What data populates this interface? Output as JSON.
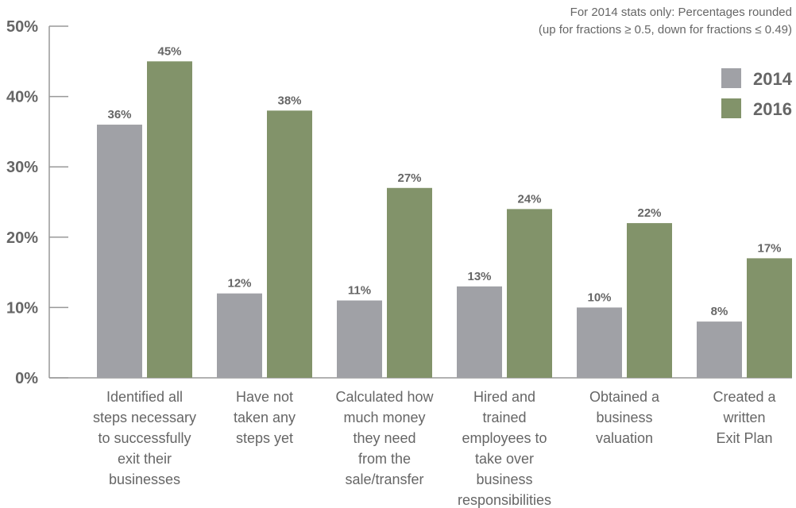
{
  "colors": {
    "series_2014": "#a0a1a6",
    "series_2016": "#82936a",
    "axis": "#999999",
    "text": "#666666"
  },
  "chart_data": {
    "type": "bar",
    "note_lines": [
      "For 2014 stats only: Percentages rounded",
      "(up for fractions ≥ 0.5, down for fractions ≤ 0.49)"
    ],
    "categories": [
      [
        "Identified all",
        "steps necessary",
        "to successfully",
        "exit their",
        "businesses"
      ],
      [
        "Have not",
        "taken any",
        "steps yet"
      ],
      [
        "Calculated how",
        "much money",
        "they need",
        "from the",
        "sale/transfer"
      ],
      [
        "Hired and",
        "trained",
        "employees to",
        "take over",
        "business",
        "responsibilities"
      ],
      [
        "Obtained a",
        "business",
        "valuation"
      ],
      [
        "Created a",
        "written",
        "Exit Plan"
      ]
    ],
    "series": [
      {
        "name": "2014",
        "values": [
          36,
          12,
          11,
          13,
          10,
          8
        ],
        "labels": [
          "36%",
          "12%",
          "11%",
          "13%",
          "10%",
          "8%"
        ]
      },
      {
        "name": "2016",
        "values": [
          45,
          38,
          27,
          24,
          22,
          17
        ],
        "labels": [
          "45%",
          "38%",
          "27%",
          "24%",
          "22%",
          "17%"
        ]
      }
    ],
    "ylim": [
      0,
      50
    ],
    "yticks": [
      0,
      10,
      20,
      30,
      40,
      50
    ],
    "ytick_labels": [
      "0%",
      "10%",
      "20%",
      "30%",
      "40%",
      "50%"
    ],
    "grid": false,
    "legend_position": "top-right"
  }
}
